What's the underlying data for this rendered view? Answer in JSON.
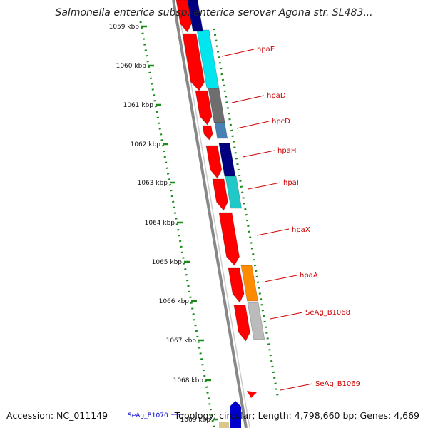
{
  "title": "Salmonella enterica subsp. enterica serovar Agona str. SL483...",
  "ticks": [
    {
      "label": "1059 kbp"
    },
    {
      "label": "1060 kbp"
    },
    {
      "label": "1061 kbp"
    },
    {
      "label": "1062 kbp"
    },
    {
      "label": "1063 kbp"
    },
    {
      "label": "1064 kbp"
    },
    {
      "label": "1065 kbp"
    },
    {
      "label": "1066 kbp"
    },
    {
      "label": "1067 kbp"
    },
    {
      "label": "1068 kbp"
    },
    {
      "label": "1069 kbp"
    }
  ],
  "genes": [
    {
      "label": "hpaE",
      "color": "#00e5ee"
    },
    {
      "label": "hpaD",
      "color": "#6e6e6e"
    },
    {
      "label": "hpcD",
      "color": "#4682b4"
    },
    {
      "label": "hpaH",
      "color": "#000080"
    },
    {
      "label": "hpaI",
      "color": "#20c8c8"
    },
    {
      "label": "hpaX",
      "color": "#ff0000"
    },
    {
      "label": "hpaA",
      "color": "#ff8c00"
    },
    {
      "label": "SeAg_B1068",
      "color": "#bbbbbb"
    },
    {
      "label": "SeAg_B1069",
      "color": "#ff0000"
    }
  ],
  "bottom_gene": {
    "label": "SeAg_B1070",
    "color": "#0000cc"
  },
  "footer": {
    "accession": "Accession: NC_011149",
    "summary": "Topology: circular; Length: 4,798,660 bp; Genes: 4,669"
  },
  "colors": {
    "cds_strand": "#ff0000",
    "backbone": "#888888",
    "tick_dots": "#1a8a1a",
    "label_text": "#cc0000"
  }
}
